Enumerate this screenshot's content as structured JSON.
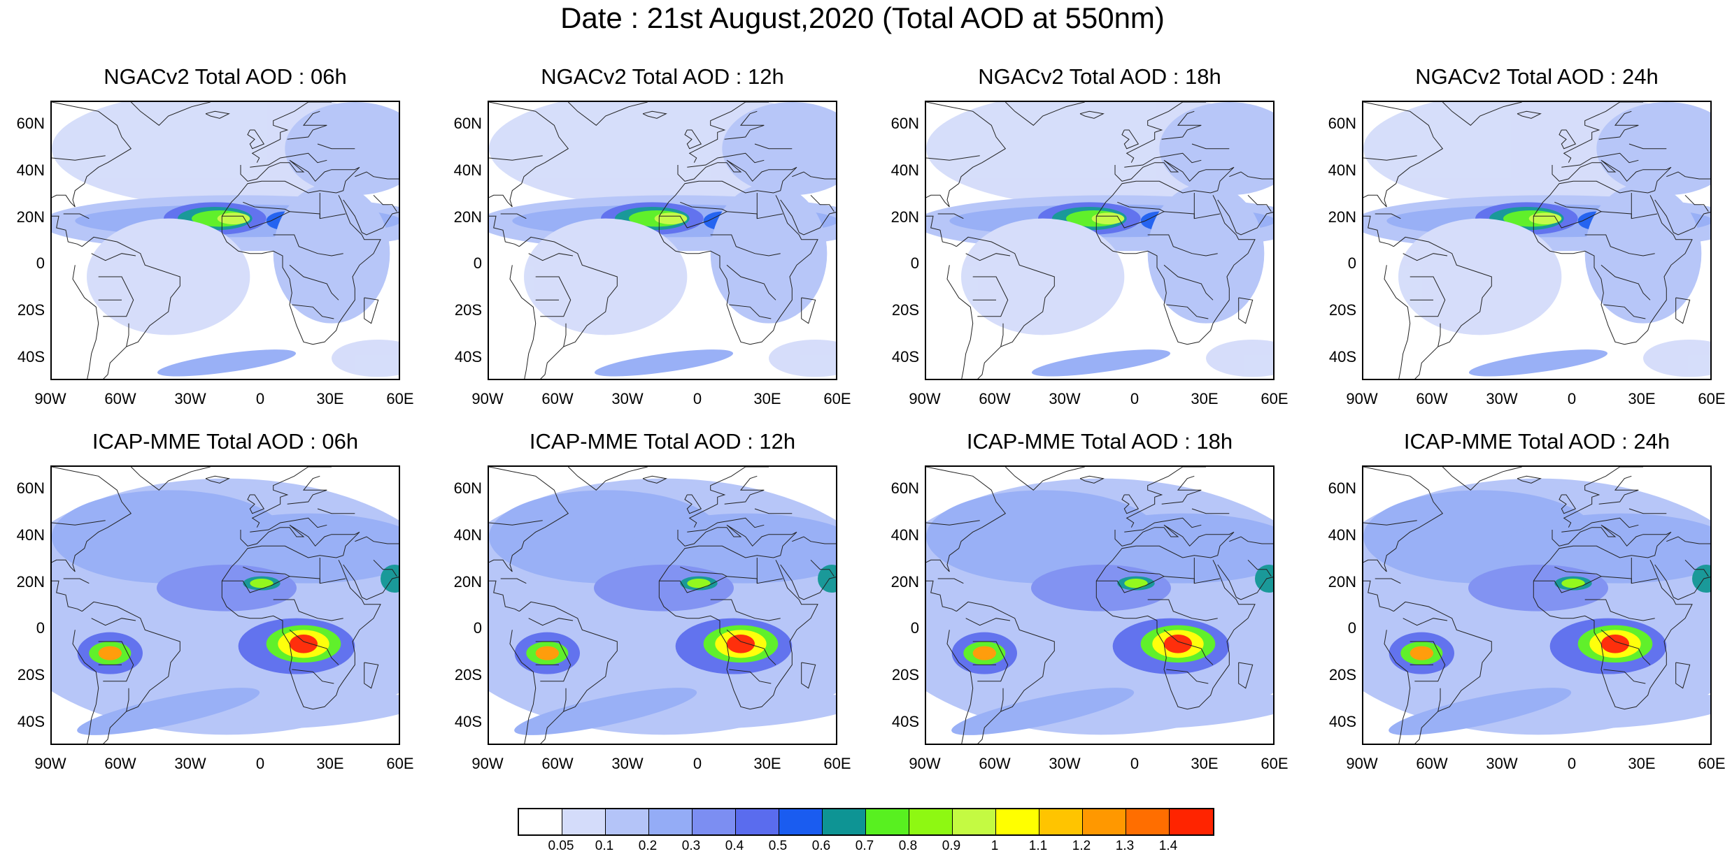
{
  "title": "Date : 21st August,2020 (Total AOD at 550nm)",
  "lat_labels": [
    "60N",
    "40N",
    "20N",
    "0",
    "20S",
    "40S"
  ],
  "lon_labels": [
    "90W",
    "60W",
    "30W",
    "0",
    "30E",
    "60E"
  ],
  "panels": [
    {
      "title": "NGACv2 Total AOD : 06h",
      "model": "NGAC"
    },
    {
      "title": "NGACv2 Total AOD : 12h",
      "model": "NGAC"
    },
    {
      "title": "NGACv2 Total AOD : 18h",
      "model": "NGAC"
    },
    {
      "title": "NGACv2 Total AOD : 24h",
      "model": "NGAC"
    },
    {
      "title": "ICAP-MME Total AOD : 06h",
      "model": "ICAP"
    },
    {
      "title": "ICAP-MME Total AOD : 12h",
      "model": "ICAP"
    },
    {
      "title": "ICAP-MME Total AOD : 18h",
      "model": "ICAP"
    },
    {
      "title": "ICAP-MME Total AOD : 24h",
      "model": "ICAP"
    }
  ],
  "colorbar": {
    "colors": [
      "#ffffff",
      "#d4dcfa",
      "#b4c4f8",
      "#94acf6",
      "#7c8ef2",
      "#5a6cee",
      "#1a5cf0",
      "#0e9494",
      "#58f020",
      "#8ef812",
      "#c4fa42",
      "#ffff00",
      "#ffc400",
      "#ff9800",
      "#ff6e00",
      "#ff2400"
    ],
    "labels": [
      "0.05",
      "0.1",
      "0.2",
      "0.3",
      "0.4",
      "0.5",
      "0.6",
      "0.7",
      "0.8",
      "0.9",
      "1",
      "1.1",
      "1.2",
      "1.3",
      "1.4"
    ]
  }
}
